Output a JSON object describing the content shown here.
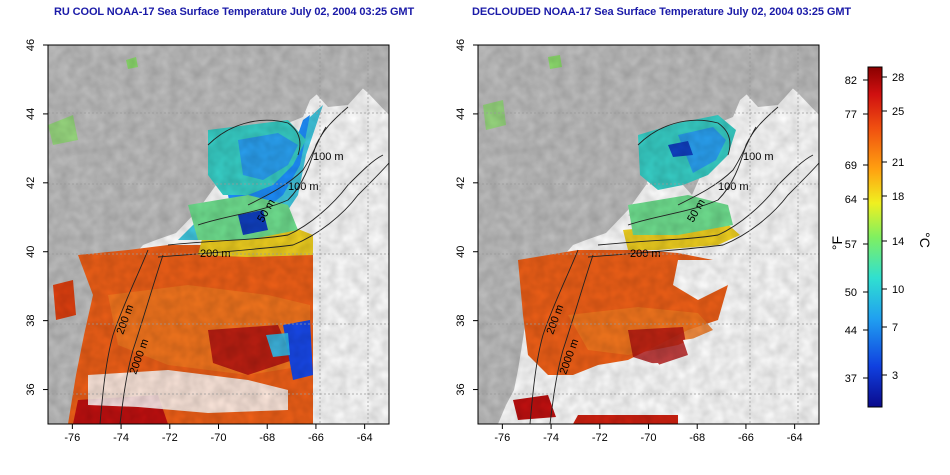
{
  "left_panel": {
    "title": "RU COOL NOAA-17 Sea Surface Temperature July 02, 2004 03:25 GMT",
    "contour_labels": [
      "100 m",
      "100 m",
      "50 m",
      "200 m",
      "200 m",
      "2000 m"
    ]
  },
  "right_panel": {
    "title": "DECLOUDED NOAA-17 Sea Surface Temperature July 02, 2004 03:25 GMT",
    "contour_labels": [
      "100 m",
      "100 m",
      "50 m",
      "200 m",
      "200 m",
      "2000 m"
    ]
  },
  "axes": {
    "lat_ticks": [
      "36",
      "38",
      "40",
      "42",
      "44",
      "46"
    ],
    "lon_ticks": [
      "-76",
      "-74",
      "-72",
      "-70",
      "-68",
      "-66",
      "-64"
    ],
    "lat_range": [
      35,
      46
    ],
    "lon_range": [
      -77,
      -63
    ]
  },
  "colorbar": {
    "fahrenheit_ticks": [
      "82",
      "77",
      "69",
      "64",
      "57",
      "50",
      "44",
      "37"
    ],
    "celsius_ticks": [
      "28",
      "25",
      "21",
      "18",
      "14",
      "10",
      "7",
      "3"
    ],
    "fahrenheit_label": "°F",
    "celsius_label": "°C",
    "colors": [
      "#0a0a8c",
      "#1040e0",
      "#20a0f0",
      "#30e0d0",
      "#80f060",
      "#f0f020",
      "#ffa010",
      "#f05010",
      "#d01010",
      "#8a0000"
    ]
  },
  "colors": {
    "land": "#c0c0c0",
    "title": "#1a1aa8"
  }
}
